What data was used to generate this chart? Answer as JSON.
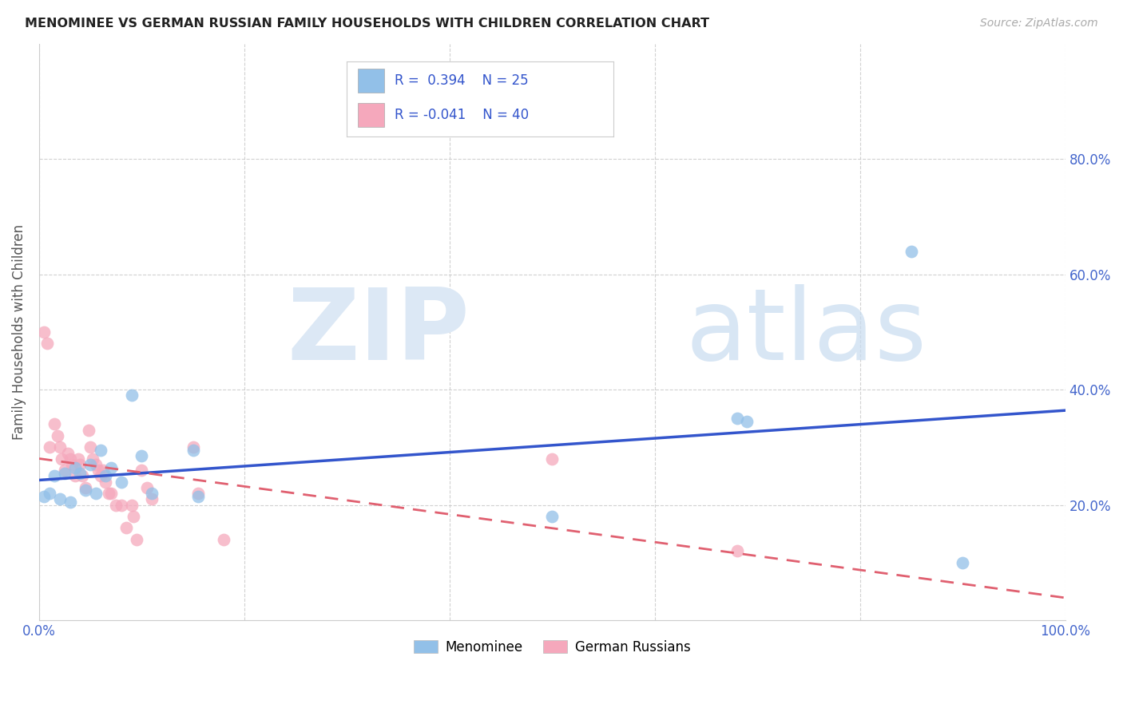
{
  "title": "MENOMINEE VS GERMAN RUSSIAN FAMILY HOUSEHOLDS WITH CHILDREN CORRELATION CHART",
  "source": "Source: ZipAtlas.com",
  "ylabel": "Family Households with Children",
  "xlim": [
    0,
    1.0
  ],
  "ylim": [
    0,
    1.0
  ],
  "xticks": [
    0.0,
    0.2,
    0.4,
    0.6,
    0.8,
    1.0
  ],
  "xticklabels": [
    "0.0%",
    "",
    "",
    "",
    "",
    "100.0%"
  ],
  "yticks_right": [
    0.2,
    0.4,
    0.6,
    0.8
  ],
  "yticklabels_right": [
    "20.0%",
    "40.0%",
    "60.0%",
    "80.0%"
  ],
  "blue_color": "#92C0E8",
  "pink_color": "#F5A8BC",
  "blue_line_color": "#3355CC",
  "pink_line_color": "#E06070",
  "menominee_x": [
    0.005,
    0.01,
    0.015,
    0.02,
    0.025,
    0.03,
    0.035,
    0.04,
    0.045,
    0.05,
    0.055,
    0.06,
    0.065,
    0.07,
    0.08,
    0.09,
    0.1,
    0.11,
    0.15,
    0.155,
    0.5,
    0.68,
    0.69,
    0.85,
    0.9
  ],
  "menominee_y": [
    0.215,
    0.22,
    0.25,
    0.21,
    0.255,
    0.205,
    0.265,
    0.255,
    0.225,
    0.27,
    0.22,
    0.295,
    0.25,
    0.265,
    0.24,
    0.39,
    0.285,
    0.22,
    0.295,
    0.215,
    0.18,
    0.35,
    0.345,
    0.64,
    0.1
  ],
  "german_russian_x": [
    0.005,
    0.008,
    0.01,
    0.015,
    0.018,
    0.02,
    0.022,
    0.025,
    0.028,
    0.03,
    0.032,
    0.035,
    0.038,
    0.04,
    0.042,
    0.045,
    0.048,
    0.05,
    0.052,
    0.055,
    0.058,
    0.06,
    0.062,
    0.065,
    0.068,
    0.07,
    0.075,
    0.08,
    0.085,
    0.09,
    0.092,
    0.095,
    0.1,
    0.105,
    0.11,
    0.15,
    0.155,
    0.18,
    0.5,
    0.68
  ],
  "german_russian_y": [
    0.5,
    0.48,
    0.3,
    0.34,
    0.32,
    0.3,
    0.28,
    0.26,
    0.29,
    0.28,
    0.27,
    0.25,
    0.28,
    0.27,
    0.25,
    0.23,
    0.33,
    0.3,
    0.28,
    0.27,
    0.26,
    0.25,
    0.26,
    0.24,
    0.22,
    0.22,
    0.2,
    0.2,
    0.16,
    0.2,
    0.18,
    0.14,
    0.26,
    0.23,
    0.21,
    0.3,
    0.22,
    0.14,
    0.28,
    0.12
  ]
}
